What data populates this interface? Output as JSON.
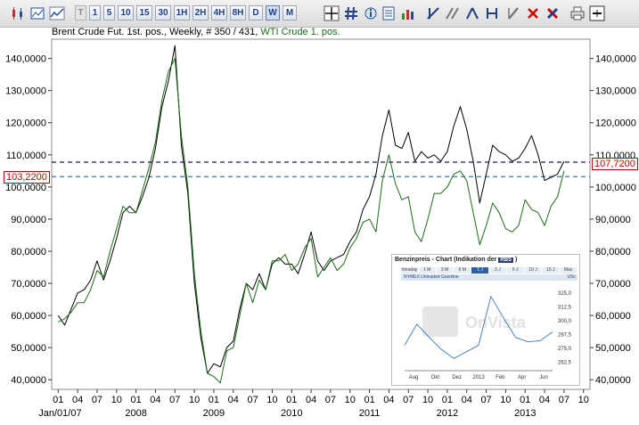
{
  "toolbar": {
    "icons_left": [
      "candlestick-icon",
      "chart-settings-icon",
      "line-chart-icon"
    ],
    "timeframes": [
      "T",
      "1",
      "5",
      "10",
      "15",
      "30",
      "1H",
      "2H",
      "4H",
      "8H",
      "D",
      "W",
      "M"
    ],
    "selected_timeframe": "W",
    "tools": [
      "crosshair-icon",
      "grid-icon",
      "info-icon",
      "scale-icon",
      "indicator-icon",
      "trendline-icon",
      "parallel-lines-icon",
      "fibonacci-icon",
      "channel-icon",
      "pencil-icon",
      "delete-icon",
      "delete-all-icon",
      "print-icon",
      "window-icon"
    ]
  },
  "legend": {
    "series1": "Brent Crude Fut. 1st. pos.",
    "info": ", Weekly, # 350 / 431,",
    "series2": "WTI Crude 1. pos."
  },
  "price_boxes": {
    "left": "103,2200",
    "right": "107,7200"
  },
  "colors": {
    "brent": "#000000",
    "wti": "#1a6b1a",
    "hline1": "#1a1a5e",
    "hline2": "#2e7ea8",
    "price_box": "#c00000"
  },
  "chart_data": {
    "type": "line",
    "x_tick_labels": [
      "01",
      "04",
      "07",
      "10",
      "01",
      "04",
      "07",
      "10",
      "01",
      "04",
      "07",
      "10",
      "01",
      "04",
      "07",
      "10",
      "01",
      "04",
      "07",
      "10",
      "01",
      "04",
      "07",
      "10",
      "01",
      "04",
      "07",
      "10"
    ],
    "x_years": [
      "Jan/01/07",
      "2008",
      "2009",
      "2010",
      "2011",
      "2012",
      "2013"
    ],
    "y_tick_labels": [
      "40,0000",
      "50,0000",
      "60,0000",
      "70,0000",
      "80,0000",
      "90,0000",
      "100,0000",
      "110,0000",
      "120,0000",
      "130,0000",
      "140,0000"
    ],
    "ylim": [
      37,
      146
    ],
    "x_range": [
      "2006-12",
      "2013-11"
    ],
    "horizontal_lines": [
      107.72,
      103.22
    ],
    "series": [
      {
        "name": "Brent Crude Fut. 1st. pos.",
        "x": [
          "2007-01",
          "2007-02",
          "2007-03",
          "2007-04",
          "2007-05",
          "2007-06",
          "2007-07",
          "2007-08",
          "2007-09",
          "2007-10",
          "2007-11",
          "2007-12",
          "2008-01",
          "2008-02",
          "2008-03",
          "2008-04",
          "2008-05",
          "2008-06",
          "2008-07",
          "2008-08",
          "2008-09",
          "2008-10",
          "2008-11",
          "2008-12",
          "2009-01",
          "2009-02",
          "2009-03",
          "2009-04",
          "2009-05",
          "2009-06",
          "2009-07",
          "2009-08",
          "2009-09",
          "2009-10",
          "2009-11",
          "2009-12",
          "2010-01",
          "2010-02",
          "2010-03",
          "2010-04",
          "2010-05",
          "2010-06",
          "2010-07",
          "2010-08",
          "2010-09",
          "2010-10",
          "2010-11",
          "2010-12",
          "2011-01",
          "2011-02",
          "2011-03",
          "2011-04",
          "2011-05",
          "2011-06",
          "2011-07",
          "2011-08",
          "2011-09",
          "2011-10",
          "2011-11",
          "2011-12",
          "2012-01",
          "2012-02",
          "2012-03",
          "2012-04",
          "2012-05",
          "2012-06",
          "2012-07",
          "2012-08",
          "2012-09",
          "2012-10",
          "2012-11",
          "2012-12",
          "2013-01",
          "2013-02",
          "2013-03",
          "2013-04",
          "2013-05",
          "2013-06",
          "2013-07"
        ],
        "values": [
          60,
          57,
          62,
          67,
          68,
          71,
          77,
          71,
          77,
          84,
          92,
          94,
          92,
          97,
          103,
          112,
          125,
          133,
          144,
          113,
          98,
          70,
          53,
          42,
          45,
          44,
          50,
          52,
          62,
          70,
          68,
          73,
          68,
          76,
          78,
          76,
          76,
          73,
          79,
          86,
          77,
          74,
          77,
          78,
          79,
          83,
          86,
          93,
          97,
          104,
          116,
          124,
          113,
          112,
          117,
          108,
          111,
          109,
          110,
          108,
          111,
          119,
          125,
          118,
          108,
          95,
          104,
          113,
          111,
          110,
          108,
          109,
          112,
          116,
          110,
          102,
          103,
          104,
          108
        ]
      },
      {
        "name": "WTI Crude 1. pos.",
        "x": [
          "2007-01",
          "2007-02",
          "2007-03",
          "2007-04",
          "2007-05",
          "2007-06",
          "2007-07",
          "2007-08",
          "2007-09",
          "2007-10",
          "2007-11",
          "2007-12",
          "2008-01",
          "2008-02",
          "2008-03",
          "2008-04",
          "2008-05",
          "2008-06",
          "2008-07",
          "2008-08",
          "2008-09",
          "2008-10",
          "2008-11",
          "2008-12",
          "2009-01",
          "2009-02",
          "2009-03",
          "2009-04",
          "2009-05",
          "2009-06",
          "2009-07",
          "2009-08",
          "2009-09",
          "2009-10",
          "2009-11",
          "2009-12",
          "2010-01",
          "2010-02",
          "2010-03",
          "2010-04",
          "2010-05",
          "2010-06",
          "2010-07",
          "2010-08",
          "2010-09",
          "2010-10",
          "2010-11",
          "2010-12",
          "2011-01",
          "2011-02",
          "2011-03",
          "2011-04",
          "2011-05",
          "2011-06",
          "2011-07",
          "2011-08",
          "2011-09",
          "2011-10",
          "2011-11",
          "2011-12",
          "2012-01",
          "2012-02",
          "2012-03",
          "2012-04",
          "2012-05",
          "2012-06",
          "2012-07",
          "2012-08",
          "2012-09",
          "2012-10",
          "2012-11",
          "2012-12",
          "2013-01",
          "2013-02",
          "2013-03",
          "2013-04",
          "2013-05",
          "2013-06",
          "2013-07"
        ],
        "values": [
          58,
          59,
          61,
          64,
          64,
          68,
          74,
          72,
          80,
          87,
          94,
          92,
          92,
          99,
          106,
          114,
          127,
          136,
          140,
          116,
          100,
          73,
          55,
          42,
          41,
          39,
          49,
          50,
          60,
          70,
          64,
          71,
          68,
          77,
          77,
          79,
          74,
          76,
          81,
          84,
          72,
          75,
          78,
          74,
          76,
          81,
          84,
          89,
          90,
          86,
          102,
          110,
          101,
          96,
          97,
          86,
          83,
          90,
          98,
          98,
          100,
          104,
          105,
          102,
          92,
          82,
          88,
          95,
          92,
          87,
          86,
          88,
          96,
          93,
          92,
          88,
          94,
          97,
          105
        ]
      }
    ]
  },
  "inset": {
    "title": "Benzinpreis - Chart (Indikation der",
    "brand": "RBS",
    "close_paren": ")",
    "tabs": [
      "Intraday",
      "1 M",
      "3 M",
      "6 M",
      "1 J",
      "3 J",
      "5 J",
      "10 J",
      "15 J",
      "Max"
    ],
    "selected_tab": "1 J",
    "series_label": "NYMEX Unleaded Gasoline",
    "unit": "USc",
    "watermark": "OnVista",
    "y_tick_labels": [
      "325,0",
      "312,5",
      "300,0",
      "287,5",
      "275,0",
      "262,5"
    ],
    "x_tick_labels": [
      "Aug",
      "Okt",
      "Dez",
      "2013",
      "Feb",
      "Apr",
      "Jun"
    ],
    "chart_data": {
      "type": "line",
      "ylim": [
        255,
        333
      ],
      "x": [
        "2012-07",
        "2012-08",
        "2012-09",
        "2012-10",
        "2012-11",
        "2012-12",
        "2013-01",
        "2013-02",
        "2013-03",
        "2013-04",
        "2013-05",
        "2013-06",
        "2013-07"
      ],
      "values": [
        278,
        297,
        285,
        274,
        266,
        272,
        278,
        322,
        303,
        285,
        281,
        282,
        290
      ]
    }
  }
}
